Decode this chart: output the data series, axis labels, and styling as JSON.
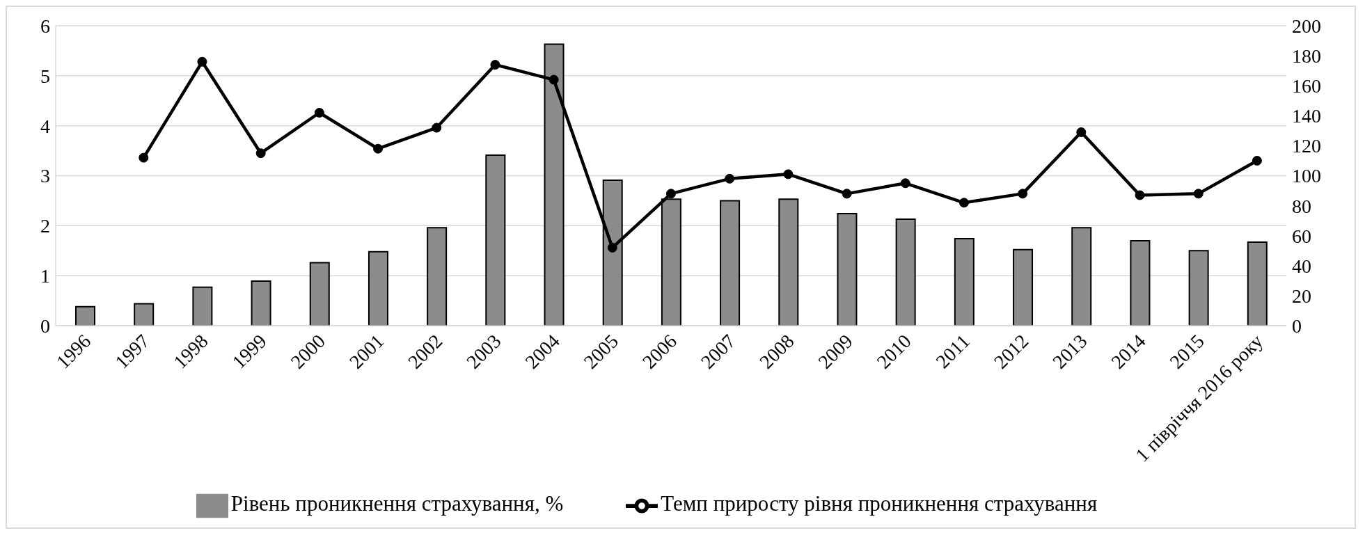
{
  "chart_data": {
    "type": "bar",
    "categories": [
      "1996",
      "1997",
      "1998",
      "1999",
      "2000",
      "2001",
      "2002",
      "2003",
      "2004",
      "2005",
      "2006",
      "2007",
      "2008",
      "2009",
      "2010",
      "2011",
      "2012",
      "2013",
      "2014",
      "2015",
      "1 півріччя 2016 року"
    ],
    "series": [
      {
        "name": "Рівень проникнення страхування, %",
        "color": "#8c8c8c",
        "values": [
          0.38,
          0.44,
          0.77,
          0.89,
          1.26,
          1.48,
          1.96,
          3.41,
          5.63,
          2.91,
          2.53,
          2.5,
          2.53,
          2.24,
          2.13,
          1.74,
          1.52,
          1.96,
          1.7,
          1.5,
          1.67
        ]
      },
      {
        "name": "Темп приросту рівня проникнення страхування",
        "type": "line",
        "axis": "y2",
        "color": "#000000",
        "values": [
          null,
          112,
          176,
          115,
          142,
          118,
          132,
          174,
          164,
          52,
          88,
          98,
          101,
          88,
          95,
          82,
          88,
          129,
          87,
          88,
          110
        ]
      }
    ],
    "ylim": [
      0,
      6
    ],
    "yticks": [
      0,
      1,
      2,
      3,
      4,
      5,
      6
    ],
    "y2lim": [
      0,
      200
    ],
    "y2ticks": [
      0,
      20,
      40,
      60,
      80,
      100,
      120,
      140,
      160,
      180,
      200
    ],
    "grid": "y",
    "legend": "bottom",
    "marker": "circle",
    "line_style": "solid"
  }
}
